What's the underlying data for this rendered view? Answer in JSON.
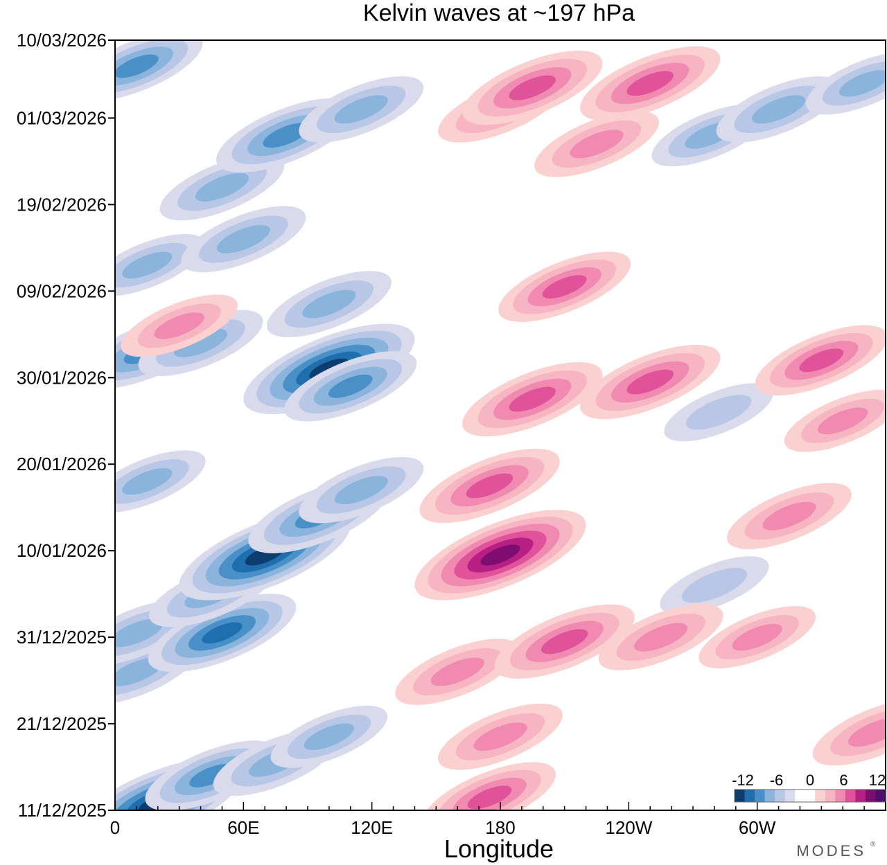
{
  "chart_data": {
    "type": "heatmap",
    "title": "Kelvin waves at ~197 hPa",
    "xlabel": "Longitude",
    "ylabel": "",
    "x_ticks": [
      {
        "lon": 0,
        "label": "0"
      },
      {
        "lon": 60,
        "label": "60E"
      },
      {
        "lon": 120,
        "label": "120E"
      },
      {
        "lon": 180,
        "label": "180"
      },
      {
        "lon": 240,
        "label": "120W"
      },
      {
        "lon": 300,
        "label": "60W"
      }
    ],
    "xlim": [
      0,
      360
    ],
    "y_ticks": [
      {
        "day": 0,
        "label": "11/12/2025"
      },
      {
        "day": 10,
        "label": "21/12/2025"
      },
      {
        "day": 20,
        "label": "31/12/2025"
      },
      {
        "day": 30,
        "label": "10/01/2026"
      },
      {
        "day": 40,
        "label": "20/01/2026"
      },
      {
        "day": 50,
        "label": "30/01/2026"
      },
      {
        "day": 60,
        "label": "09/02/2026"
      },
      {
        "day": 70,
        "label": "19/02/2026"
      },
      {
        "day": 80,
        "label": "01/03/2026"
      },
      {
        "day": 89,
        "label": "10/03/2026"
      }
    ],
    "ylim_days": [
      0,
      89
    ],
    "colorbar": {
      "labels": [
        "-12",
        "-6",
        "0",
        "6",
        "12"
      ],
      "levels": [
        -12,
        -6,
        0,
        6,
        12
      ],
      "colors": [
        "#0d3c6e",
        "#1f6fae",
        "#4a90c8",
        "#8ab4dc",
        "#b8c7e6",
        "#d9dbec",
        "#ffffff",
        "#ffffff",
        "#fbd0d0",
        "#f7b4c2",
        "#f08ab0",
        "#e0529a",
        "#b81f85",
        "#7e0d72",
        "#4f0e6b"
      ]
    },
    "negative_anomalies": [
      {
        "lon": 20,
        "day": 0.8,
        "value": -12
      },
      {
        "lon": 45,
        "day": 4,
        "value": -7
      },
      {
        "lon": 75,
        "day": 5.5,
        "value": -6
      },
      {
        "lon": 100,
        "day": 8.5,
        "value": -5
      },
      {
        "lon": 10,
        "day": 16,
        "value": -6
      },
      {
        "lon": 10,
        "day": 20.5,
        "value": -6
      },
      {
        "lon": 50,
        "day": 20.5,
        "value": -9
      },
      {
        "lon": 45,
        "day": 25,
        "value": -6
      },
      {
        "lon": 70,
        "day": 29.5,
        "value": -12
      },
      {
        "lon": 95,
        "day": 34,
        "value": -8
      },
      {
        "lon": 115,
        "day": 37,
        "value": -6
      },
      {
        "lon": 15,
        "day": 38,
        "value": -5
      },
      {
        "lon": 100,
        "day": 51,
        "value": -12
      },
      {
        "lon": 110,
        "day": 49,
        "value": -7
      },
      {
        "lon": 15,
        "day": 53,
        "value": -8
      },
      {
        "lon": 40,
        "day": 54,
        "value": -6
      },
      {
        "lon": 100,
        "day": 58.5,
        "value": -6
      },
      {
        "lon": 15,
        "day": 63,
        "value": -5
      },
      {
        "lon": 60,
        "day": 66,
        "value": -6
      },
      {
        "lon": 50,
        "day": 72,
        "value": -6
      },
      {
        "lon": 80,
        "day": 78,
        "value": -8
      },
      {
        "lon": 115,
        "day": 81,
        "value": -6
      },
      {
        "lon": 10,
        "day": 86,
        "value": -7
      },
      {
        "lon": 278,
        "day": 78,
        "value": -5
      },
      {
        "lon": 310,
        "day": 81,
        "value": -6
      },
      {
        "lon": 350,
        "day": 84,
        "value": -5
      },
      {
        "lon": 280,
        "day": 26,
        "value": -4
      },
      {
        "lon": 282,
        "day": 46,
        "value": -4
      }
    ],
    "positive_anomalies": [
      {
        "lon": 180,
        "day": 29.5,
        "value": 12
      },
      {
        "lon": 175,
        "day": 37.5,
        "value": 8
      },
      {
        "lon": 195,
        "day": 47.5,
        "value": 8
      },
      {
        "lon": 250,
        "day": 49.5,
        "value": 8
      },
      {
        "lon": 330,
        "day": 52,
        "value": 7
      },
      {
        "lon": 210,
        "day": 60.5,
        "value": 7
      },
      {
        "lon": 180,
        "day": 81,
        "value": 6
      },
      {
        "lon": 195,
        "day": 83.5,
        "value": 8
      },
      {
        "lon": 250,
        "day": 84,
        "value": 8
      },
      {
        "lon": 225,
        "day": 77,
        "value": 6
      },
      {
        "lon": 160,
        "day": 16,
        "value": 6
      },
      {
        "lon": 210,
        "day": 19.5,
        "value": 8
      },
      {
        "lon": 180,
        "day": 8.5,
        "value": 6
      },
      {
        "lon": 175,
        "day": 1.5,
        "value": 7
      },
      {
        "lon": 255,
        "day": 20,
        "value": 6
      },
      {
        "lon": 300,
        "day": 20,
        "value": 5
      },
      {
        "lon": 315,
        "day": 34,
        "value": 6
      },
      {
        "lon": 340,
        "day": 45,
        "value": 5
      },
      {
        "lon": 30,
        "day": 56,
        "value": 5
      },
      {
        "lon": 355,
        "day": 9,
        "value": 6
      }
    ]
  },
  "brand": {
    "logo_text": "MODES"
  }
}
